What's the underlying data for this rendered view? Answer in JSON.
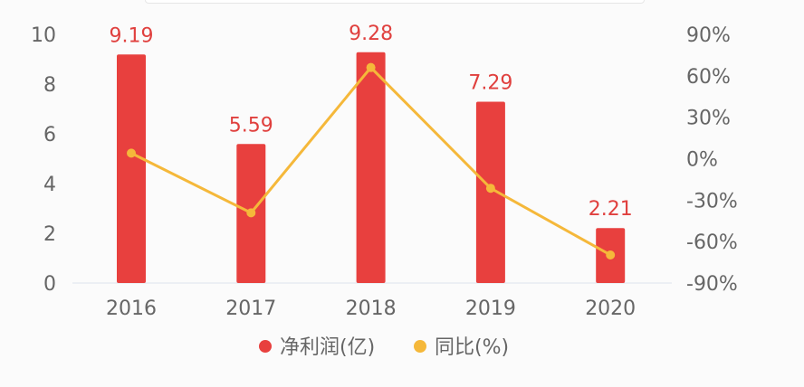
{
  "chart_data": {
    "type": "bar+line",
    "categories": [
      "2016",
      "2017",
      "2018",
      "2019",
      "2020"
    ],
    "series": [
      {
        "name": "净利润(亿)",
        "type": "bar",
        "axis": "left",
        "values": [
          9.19,
          5.59,
          9.28,
          7.29,
          2.21
        ],
        "labels": [
          "9.19",
          "5.59",
          "9.28",
          "7.29",
          "2.21"
        ],
        "color": "#e8403e"
      },
      {
        "name": "同比(%)",
        "type": "line",
        "axis": "right",
        "values": [
          4,
          -39.2,
          66,
          -21.4,
          -69.7
        ],
        "color": "#f5b83a"
      }
    ],
    "left_axis": {
      "ylim": [
        0,
        10
      ],
      "ticks": [
        "0",
        "2",
        "4",
        "6",
        "8",
        "10"
      ]
    },
    "right_axis": {
      "ylim": [
        -90,
        90
      ],
      "ticks": [
        "-90%",
        "-60%",
        "-30%",
        "0%",
        "30%",
        "60%",
        "90%"
      ]
    },
    "legend": {
      "placement": "bottom",
      "items": [
        "净利润(亿)",
        "同比(%)"
      ]
    },
    "grid": false,
    "label_color": "#e0403e"
  }
}
